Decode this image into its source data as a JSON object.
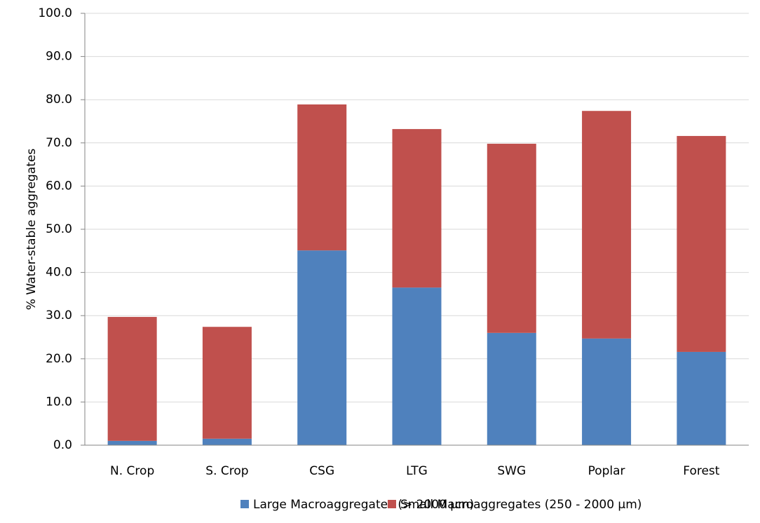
{
  "chart_data": {
    "type": "stacked-bar",
    "y_label": "% Water-stable aggregates",
    "categories": [
      "N. Crop",
      "S. Crop",
      "CSG",
      "LTG",
      "SWG",
      "Poplar",
      "Forest"
    ],
    "series": [
      {
        "name": "Large Macroaggregates (> 2000 µm)",
        "color": "#4f81bd",
        "values": [
          1.0,
          1.5,
          45.1,
          36.5,
          26.0,
          24.7,
          21.6
        ]
      },
      {
        "name": "Small Macroaggregates (250 - 2000 µm)",
        "color": "#c0504d",
        "values": [
          28.7,
          25.9,
          33.8,
          36.7,
          43.8,
          52.7,
          50.0
        ]
      }
    ],
    "ylim": [
      0,
      100
    ],
    "yticks": [
      {
        "value": 0,
        "label": "0.0"
      },
      {
        "value": 10,
        "label": "10.0"
      },
      {
        "value": 20,
        "label": "20.0"
      },
      {
        "value": 30,
        "label": "30.0"
      },
      {
        "value": 40,
        "label": "40.0"
      },
      {
        "value": 50,
        "label": "50.0"
      },
      {
        "value": 60,
        "label": "60.0"
      },
      {
        "value": 70,
        "label": "70.0"
      },
      {
        "value": 80,
        "label": "80.0"
      },
      {
        "value": 90,
        "label": "90.0"
      },
      {
        "value": 100,
        "label": "100.0"
      }
    ],
    "grid": true,
    "legend": "bottom"
  }
}
